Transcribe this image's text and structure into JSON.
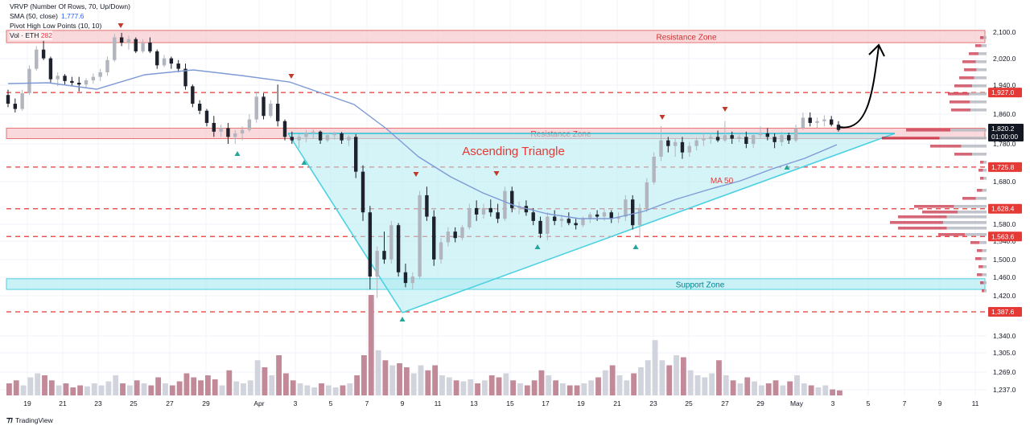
{
  "legend": {
    "vrvp": "VRVP (Number Of Rows, 70, Up/Down)",
    "sma_label": "SMA (50, close)",
    "sma_value": "1,777.6",
    "pivot": "Pivot High Low Points (10, 10)",
    "vol_label": "Vol · ETH",
    "vol_value": "282"
  },
  "footer": {
    "brand": "TradingView",
    "icon": "tradingview-logo-icon"
  },
  "colors": {
    "up": "#b2b5be",
    "down": "#1e222d",
    "vol_up": "#d1d4dc",
    "vol_down": "#c28a99",
    "zone_red": "#f7c9cc",
    "zone_cyan": "#b2ebf2",
    "triangle": "#4dd0e1",
    "level_line": "#e53935",
    "ma": "#7e9ad6",
    "pivot_high": "#c0392b",
    "pivot_low": "#26a69a"
  },
  "chart_data": {
    "type": "candlestick",
    "price_axis": {
      "ticks": [
        2100,
        2020,
        1940,
        1860,
        1780,
        1680,
        1580,
        1540,
        1500,
        1460,
        1420,
        1340,
        1305,
        1269,
        1237
      ],
      "tick_labels": [
        "2,100.0",
        "2,020.0",
        "1,940.0",
        "1,860.0",
        "1,780.0",
        "1,680.0",
        "1,580.0",
        "1,540.0",
        "1,500.0",
        "1,460.0",
        "1,420.0",
        "1,340.0",
        "1,305.0",
        "1,269.0",
        "1,237.0"
      ],
      "current_price": "1,820.2",
      "countdown": "01:00:00",
      "level_labels": [
        "1,927.0",
        "1,725.8",
        "1,628.4",
        "1,563.6",
        "1,387.6"
      ]
    },
    "time_axis": [
      "19",
      "21",
      "23",
      "25",
      "27",
      "29",
      "Apr",
      "3",
      "5",
      "7",
      "9",
      "11",
      "13",
      "15",
      "17",
      "19",
      "21",
      "23",
      "25",
      "27",
      "29",
      "May",
      "3",
      "5",
      "7",
      "9",
      "11"
    ],
    "zones": [
      {
        "label": "Resistance Zone",
        "from": 2070,
        "to": 2105,
        "kind": "resistance"
      },
      {
        "label": "Resistance Zone",
        "from": 1795,
        "to": 1825,
        "kind": "resistance"
      },
      {
        "label": "Support Zone",
        "from": 1440,
        "to": 1465,
        "kind": "support"
      }
    ],
    "levels": [
      1927.0,
      1725.8,
      1628.4,
      1563.6,
      1387.6
    ],
    "pattern": {
      "label": "Ascending Triangle",
      "resistance": 1805,
      "start_date": "Apr 3",
      "apex_date": "May 6",
      "bottom_date": "Apr 9",
      "bottom_price": 1393
    },
    "ma_label": "MA 50",
    "ohlc_candles": [
      [
        1920,
        1935,
        1885,
        1895
      ],
      [
        1895,
        1910,
        1870,
        1880
      ],
      [
        1880,
        1935,
        1875,
        1925
      ],
      [
        1925,
        2005,
        1920,
        1995
      ],
      [
        1995,
        2060,
        1990,
        2050
      ],
      [
        2050,
        2075,
        2020,
        2025
      ],
      [
        2025,
        2030,
        1955,
        1965
      ],
      [
        1965,
        1985,
        1945,
        1975
      ],
      [
        1975,
        1980,
        1950,
        1960
      ],
      [
        1960,
        1972,
        1945,
        1955
      ],
      [
        1955,
        1972,
        1930,
        1950
      ],
      [
        1950,
        1968,
        1940,
        1962
      ],
      [
        1962,
        1982,
        1952,
        1972
      ],
      [
        1972,
        1995,
        1960,
        1985
      ],
      [
        1985,
        2030,
        1975,
        2020
      ],
      [
        2020,
        2095,
        2015,
        2085
      ],
      [
        2085,
        2098,
        2060,
        2070
      ],
      [
        2070,
        2090,
        2050,
        2080
      ],
      [
        2080,
        2085,
        2040,
        2045
      ],
      [
        2045,
        2080,
        2040,
        2070
      ],
      [
        2070,
        2085,
        2040,
        2045
      ],
      [
        2045,
        2050,
        1995,
        2005
      ],
      [
        2005,
        2035,
        2000,
        2025
      ],
      [
        2025,
        2030,
        1995,
        2010
      ],
      [
        2010,
        2020,
        1985,
        1995
      ],
      [
        1995,
        2010,
        1935,
        1945
      ],
      [
        1945,
        1950,
        1885,
        1895
      ],
      [
        1895,
        1905,
        1865,
        1875
      ],
      [
        1875,
        1880,
        1830,
        1840
      ],
      [
        1840,
        1860,
        1800,
        1815
      ],
      [
        1815,
        1835,
        1800,
        1825
      ],
      [
        1825,
        1840,
        1780,
        1800
      ],
      [
        1800,
        1820,
        1780,
        1810
      ],
      [
        1810,
        1830,
        1790,
        1820
      ],
      [
        1820,
        1865,
        1815,
        1850
      ],
      [
        1850,
        1930,
        1840,
        1915
      ],
      [
        1915,
        1925,
        1850,
        1860
      ],
      [
        1860,
        1905,
        1855,
        1895
      ],
      [
        1895,
        1950,
        1830,
        1845
      ],
      [
        1845,
        1850,
        1790,
        1800
      ],
      [
        1800,
        1815,
        1780,
        1790
      ],
      [
        1790,
        1808,
        1770,
        1800
      ],
      [
        1800,
        1820,
        1785,
        1810
      ],
      [
        1810,
        1822,
        1795,
        1815
      ],
      [
        1815,
        1818,
        1780,
        1790
      ],
      [
        1790,
        1812,
        1785,
        1805
      ],
      [
        1805,
        1815,
        1792,
        1810
      ],
      [
        1810,
        1814,
        1780,
        1790
      ],
      [
        1790,
        1805,
        1775,
        1800
      ],
      [
        1800,
        1808,
        1700,
        1715
      ],
      [
        1715,
        1730,
        1600,
        1620
      ],
      [
        1620,
        1635,
        1440,
        1470
      ],
      [
        1470,
        1540,
        1420,
        1530
      ],
      [
        1530,
        1575,
        1500,
        1510
      ],
      [
        1510,
        1600,
        1500,
        1590
      ],
      [
        1590,
        1595,
        1470,
        1480
      ],
      [
        1480,
        1500,
        1445,
        1455
      ],
      [
        1455,
        1480,
        1440,
        1470
      ],
      [
        1470,
        1670,
        1465,
        1660
      ],
      [
        1660,
        1680,
        1600,
        1610
      ],
      [
        1610,
        1625,
        1495,
        1510
      ],
      [
        1510,
        1560,
        1500,
        1550
      ],
      [
        1550,
        1585,
        1540,
        1575
      ],
      [
        1575,
        1585,
        1550,
        1560
      ],
      [
        1560,
        1590,
        1555,
        1585
      ],
      [
        1585,
        1640,
        1580,
        1630
      ],
      [
        1630,
        1648,
        1600,
        1615
      ],
      [
        1615,
        1640,
        1605,
        1630
      ],
      [
        1630,
        1650,
        1610,
        1620
      ],
      [
        1620,
        1640,
        1595,
        1605
      ],
      [
        1605,
        1680,
        1600,
        1670
      ],
      [
        1670,
        1680,
        1620,
        1630
      ],
      [
        1630,
        1645,
        1615,
        1635
      ],
      [
        1635,
        1648,
        1612,
        1620
      ],
      [
        1620,
        1630,
        1590,
        1600
      ],
      [
        1600,
        1610,
        1560,
        1570
      ],
      [
        1570,
        1620,
        1555,
        1610
      ],
      [
        1610,
        1625,
        1590,
        1600
      ],
      [
        1600,
        1615,
        1585,
        1605
      ],
      [
        1605,
        1620,
        1590,
        1595
      ],
      [
        1595,
        1605,
        1580,
        1590
      ],
      [
        1590,
        1610,
        1585,
        1605
      ],
      [
        1605,
        1620,
        1595,
        1615
      ],
      [
        1615,
        1625,
        1600,
        1610
      ],
      [
        1610,
        1630,
        1600,
        1620
      ],
      [
        1620,
        1625,
        1595,
        1605
      ],
      [
        1605,
        1620,
        1595,
        1610
      ],
      [
        1610,
        1660,
        1600,
        1650
      ],
      [
        1650,
        1660,
        1580,
        1590
      ],
      [
        1590,
        1640,
        1560,
        1630
      ],
      [
        1630,
        1700,
        1620,
        1690
      ],
      [
        1690,
        1760,
        1685,
        1750
      ],
      [
        1750,
        1830,
        1740,
        1790
      ],
      [
        1790,
        1800,
        1760,
        1775
      ],
      [
        1775,
        1795,
        1750,
        1785
      ],
      [
        1785,
        1800,
        1745,
        1760
      ],
      [
        1760,
        1785,
        1750,
        1775
      ],
      [
        1775,
        1798,
        1765,
        1790
      ],
      [
        1790,
        1810,
        1775,
        1795
      ],
      [
        1795,
        1812,
        1780,
        1800
      ],
      [
        1800,
        1818,
        1785,
        1790
      ],
      [
        1790,
        1845,
        1785,
        1805
      ],
      [
        1805,
        1815,
        1780,
        1795
      ],
      [
        1795,
        1810,
        1785,
        1800
      ],
      [
        1800,
        1815,
        1770,
        1780
      ],
      [
        1780,
        1810,
        1770,
        1805
      ],
      [
        1805,
        1830,
        1795,
        1810
      ],
      [
        1810,
        1825,
        1790,
        1800
      ],
      [
        1800,
        1810,
        1770,
        1785
      ],
      [
        1785,
        1815,
        1775,
        1805
      ],
      [
        1805,
        1812,
        1780,
        1790
      ],
      [
        1790,
        1835,
        1785,
        1825
      ],
      [
        1825,
        1870,
        1820,
        1855
      ],
      [
        1855,
        1870,
        1830,
        1840
      ],
      [
        1840,
        1855,
        1825,
        1845
      ],
      [
        1845,
        1862,
        1830,
        1850
      ],
      [
        1850,
        1860,
        1830,
        1835
      ],
      [
        1835,
        1845,
        1815,
        1820
      ]
    ],
    "volume_relative": [
      0.12,
      0.15,
      0.1,
      0.18,
      0.22,
      0.2,
      0.15,
      0.1,
      0.12,
      0.08,
      0.1,
      0.09,
      0.12,
      0.1,
      0.14,
      0.2,
      0.12,
      0.1,
      0.15,
      0.12,
      0.1,
      0.18,
      0.12,
      0.1,
      0.14,
      0.22,
      0.18,
      0.15,
      0.2,
      0.16,
      0.1,
      0.25,
      0.14,
      0.12,
      0.15,
      0.35,
      0.28,
      0.2,
      0.4,
      0.22,
      0.15,
      0.12,
      0.1,
      0.08,
      0.12,
      0.1,
      0.08,
      0.1,
      0.12,
      0.2,
      0.4,
      1.0,
      0.45,
      0.35,
      0.3,
      0.32,
      0.28,
      0.22,
      0.3,
      0.25,
      0.3,
      0.2,
      0.18,
      0.15,
      0.14,
      0.16,
      0.12,
      0.15,
      0.2,
      0.18,
      0.22,
      0.15,
      0.12,
      0.1,
      0.15,
      0.25,
      0.2,
      0.15,
      0.12,
      0.1,
      0.1,
      0.12,
      0.15,
      0.18,
      0.25,
      0.3,
      0.2,
      0.15,
      0.22,
      0.28,
      0.35,
      0.55,
      0.35,
      0.3,
      0.4,
      0.38,
      0.25,
      0.2,
      0.18,
      0.22,
      0.35,
      0.2,
      0.15,
      0.12,
      0.18,
      0.14,
      0.1,
      0.12,
      0.15,
      0.1,
      0.14,
      0.2,
      0.12,
      0.1,
      0.08,
      0.1,
      0.06,
      0.05
    ]
  }
}
